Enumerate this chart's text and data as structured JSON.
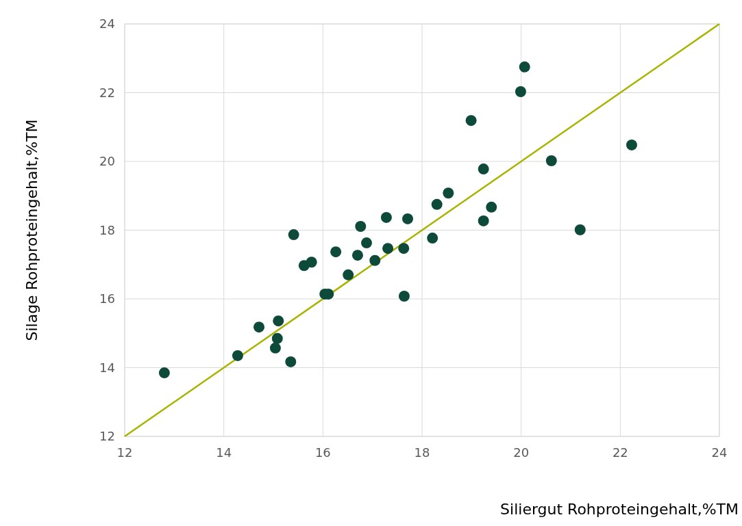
{
  "chart_data": {
    "type": "scatter",
    "xlabel": "Siliergut Rohproteingehalt,%TM",
    "ylabel": "Silage Rohproteingehalt,%TM",
    "xlim": [
      12,
      24
    ],
    "ylim": [
      12,
      24
    ],
    "xticks": [
      12,
      14,
      16,
      18,
      20,
      22,
      24
    ],
    "yticks": [
      12,
      14,
      16,
      18,
      20,
      22,
      24
    ],
    "grid": true,
    "marker": "circle",
    "series": [
      {
        "type": "line",
        "color": "#a8b400",
        "x": [
          12,
          24
        ],
        "values": [
          12,
          24
        ],
        "marker": "none",
        "line_style": "solid"
      },
      {
        "color": "#0d4a3a",
        "x": [
          12.8,
          14.28,
          14.71,
          15.1,
          15.08,
          15.04,
          15.35,
          15.41,
          15.62,
          15.77,
          16.04,
          16.11,
          16.26,
          16.51,
          16.7,
          16.76,
          16.88,
          17.05,
          17.28,
          17.31,
          17.63,
          17.64,
          17.71,
          18.21,
          18.3,
          18.53,
          18.99,
          19.24,
          19.24,
          19.4,
          19.99,
          20.07,
          20.61,
          21.19,
          22.23
        ],
        "values": [
          13.85,
          14.35,
          15.18,
          15.36,
          14.85,
          14.57,
          14.17,
          17.87,
          16.97,
          17.07,
          16.14,
          16.14,
          17.37,
          16.7,
          17.27,
          18.11,
          17.63,
          17.12,
          18.37,
          17.47,
          17.47,
          16.08,
          18.33,
          17.77,
          18.75,
          19.08,
          21.19,
          19.78,
          18.27,
          18.67,
          22.03,
          22.75,
          20.02,
          18.01,
          20.48
        ]
      }
    ]
  }
}
